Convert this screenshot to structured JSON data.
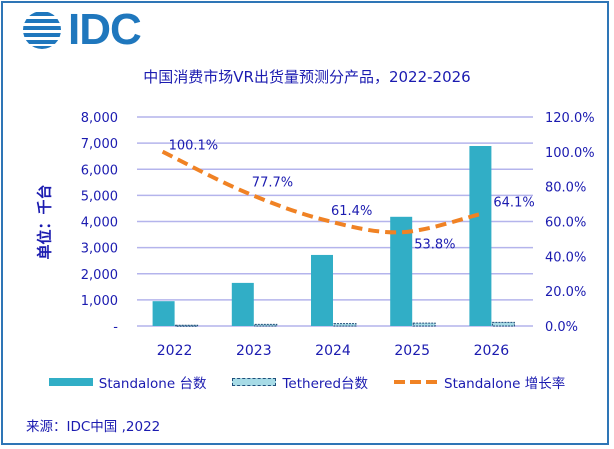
{
  "logo": {
    "text": "IDC",
    "icon": "idc-globe-icon"
  },
  "chart_data": {
    "type": "bar",
    "title": "中国消费市场VR出货量预测分产品，2022-2026",
    "ylabel": "单位：千台",
    "y2label": "",
    "xlabel": "",
    "categories": [
      "2022",
      "2023",
      "2024",
      "2025",
      "2026"
    ],
    "series": [
      {
        "name": "Standalone 台数",
        "type": "bar",
        "axis": "left",
        "color": "#31aec6",
        "values": [
          950,
          1650,
          2720,
          4180,
          6890
        ]
      },
      {
        "name": "Tethered台数",
        "type": "bar",
        "axis": "left",
        "color": "#a7dbe6",
        "border": "#1f4e79",
        "values": [
          30,
          60,
          90,
          110,
          140
        ]
      },
      {
        "name": "Standalone 增长率",
        "type": "line",
        "axis": "right",
        "color": "#f08224",
        "style": "dashed",
        "values": [
          100.1,
          77.7,
          61.4,
          53.8,
          64.1
        ],
        "labels": [
          "100.1%",
          "77.7%",
          "61.4%",
          "53.8%",
          "64.1%"
        ]
      }
    ],
    "ylim": [
      0,
      8000
    ],
    "y2lim": [
      0,
      120
    ],
    "yticks": [
      "-",
      "1,000",
      "2,000",
      "3,000",
      "4,000",
      "5,000",
      "6,000",
      "7,000",
      "8,000"
    ],
    "y2ticks": [
      "0.0%",
      "20.0%",
      "40.0%",
      "60.0%",
      "80.0%",
      "100.0%",
      "120.0%"
    ],
    "grid": true,
    "legend_position": "bottom"
  },
  "source": "来源：IDC中国 ,2022"
}
